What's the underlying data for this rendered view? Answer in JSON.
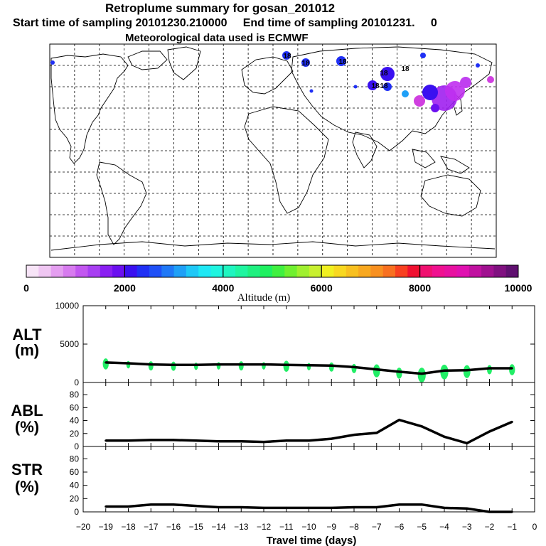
{
  "header": {
    "title": "Retroplume summary for gosan_201012",
    "sampling": "Start time of sampling 20101230.210000     End time of sampling 20101231.     0",
    "met": "Meteorological data used is ECMWF"
  },
  "colorbar": {
    "label": "Altitude (m)",
    "ticks": [
      "0",
      "2000",
      "4000",
      "6000",
      "8000",
      "10000"
    ],
    "range": [
      0,
      10000
    ],
    "colors": [
      "#f7e4f7",
      "#efc6f2",
      "#e49ef0",
      "#d77bef",
      "#c257f0",
      "#a83ff2",
      "#8a1ff2",
      "#6b0ff0",
      "#3a10f0",
      "#2030f5",
      "#1f50f7",
      "#1f78f7",
      "#1fa0f7",
      "#1fc8f7",
      "#1fe8f5",
      "#1ff5e0",
      "#1ff5c0",
      "#1ff5a0",
      "#1ff080",
      "#1ff060",
      "#40f040",
      "#70f030",
      "#a0f030",
      "#c8f030",
      "#f0f020",
      "#f8d820",
      "#f8c020",
      "#f8a820",
      "#f89020",
      "#f87020",
      "#f84020",
      "#f01030",
      "#f01070",
      "#f01090",
      "#e810a0",
      "#e010b0",
      "#c010a0",
      "#a01090",
      "#801080",
      "#601070"
    ]
  },
  "map": {
    "labels": [
      "18",
      "18",
      "18",
      "18",
      "18",
      "18",
      "18"
    ]
  },
  "chart_data": [
    {
      "type": "line",
      "panel": "ALT",
      "ylabel_line1": "ALT",
      "ylabel_line2": "(m)",
      "ylim": [
        0,
        10000
      ],
      "yticks": [
        "10000",
        "5000",
        "0"
      ],
      "x": [
        -19,
        -18,
        -17,
        -16,
        -15,
        -14,
        -13,
        -12,
        -11,
        -10,
        -9,
        -8,
        -7,
        -6,
        -5,
        -4,
        -3,
        -2,
        -1
      ],
      "values": [
        2600,
        2500,
        2350,
        2300,
        2300,
        2350,
        2350,
        2350,
        2300,
        2250,
        2200,
        2000,
        1700,
        1400,
        1150,
        1550,
        1600,
        1850,
        1850
      ],
      "color": "#000000",
      "scatter_color": "#22ee66"
    },
    {
      "type": "line",
      "panel": "ABL",
      "ylabel_line1": "ABL",
      "ylabel_line2": "(%)",
      "ylim": [
        0,
        90
      ],
      "yticks": [
        "80",
        "60",
        "40",
        "20",
        "0"
      ],
      "x": [
        -19,
        -18,
        -17,
        -16,
        -15,
        -14,
        -13,
        -12,
        -11,
        -10,
        -9,
        -8,
        -7,
        -6,
        -5,
        -4,
        -3,
        -2,
        -1
      ],
      "values": [
        9,
        9,
        10,
        10,
        9,
        8,
        8,
        7,
        9,
        9,
        12,
        18,
        21,
        41,
        31,
        15,
        5,
        23,
        38
      ]
    },
    {
      "type": "line",
      "panel": "STR",
      "ylabel_line1": "STR",
      "ylabel_line2": "(%)",
      "ylim": [
        0,
        90
      ],
      "yticks": [
        "80",
        "60",
        "40",
        "20",
        "0"
      ],
      "x": [
        -19,
        -18,
        -17,
        -16,
        -15,
        -14,
        -13,
        -12,
        -11,
        -10,
        -9,
        -8,
        -7,
        -6,
        -5,
        -4,
        -3,
        -2,
        -1
      ],
      "values": [
        8,
        8,
        11,
        11,
        9,
        7,
        7,
        6,
        6,
        6,
        6,
        7,
        7,
        11,
        11,
        6,
        5,
        0,
        0
      ]
    }
  ],
  "xaxis": {
    "ticks": [
      "−20",
      "−19",
      "−18",
      "−17",
      "−16",
      "−15",
      "−14",
      "−13",
      "−12",
      "−11",
      "−10",
      "−9",
      "−8",
      "−7",
      "−6",
      "−5",
      "−4",
      "−3",
      "−2",
      "−1",
      "0"
    ],
    "label": "Travel time (days)"
  }
}
